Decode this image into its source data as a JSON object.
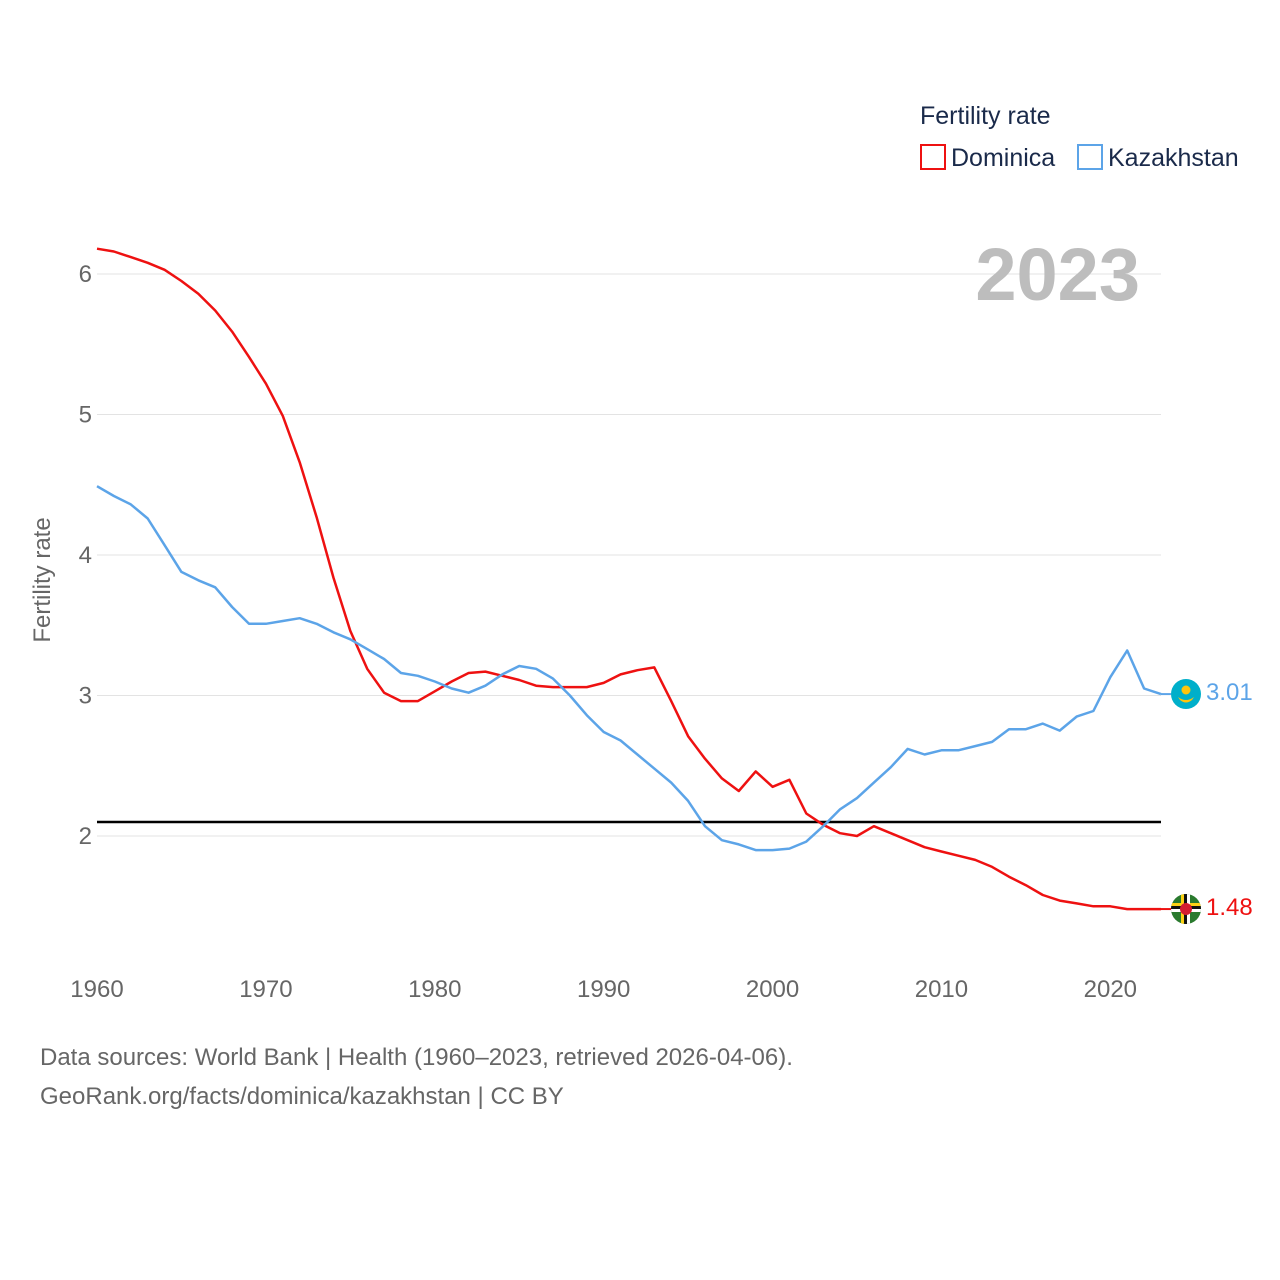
{
  "chart_data": {
    "type": "line",
    "title": "",
    "xlabel": "",
    "ylabel": "Fertility rate",
    "xlim": [
      1960,
      2023
    ],
    "ylim": [
      1.0,
      6.4
    ],
    "yticks": [
      2,
      3,
      4,
      5,
      6
    ],
    "xticks": [
      1960,
      1970,
      1980,
      1990,
      2000,
      2010,
      2020
    ],
    "year_label": "2023",
    "reference_line": {
      "y": 2.1,
      "color": "#000000"
    },
    "legend": {
      "title": "Fertility rate",
      "position": "top-right"
    },
    "x": [
      1960,
      1961,
      1962,
      1963,
      1964,
      1965,
      1966,
      1967,
      1968,
      1969,
      1970,
      1971,
      1972,
      1973,
      1974,
      1975,
      1976,
      1977,
      1978,
      1979,
      1980,
      1981,
      1982,
      1983,
      1984,
      1985,
      1986,
      1987,
      1988,
      1989,
      1990,
      1991,
      1992,
      1993,
      1994,
      1995,
      1996,
      1997,
      1998,
      1999,
      2000,
      2001,
      2002,
      2003,
      2004,
      2005,
      2006,
      2007,
      2008,
      2009,
      2010,
      2011,
      2012,
      2013,
      2014,
      2015,
      2016,
      2017,
      2018,
      2019,
      2020,
      2021,
      2022,
      2023
    ],
    "series": [
      {
        "name": "Dominica",
        "color": "#ee1111",
        "end_value_label": "1.48",
        "values": [
          6.18,
          6.16,
          6.12,
          6.08,
          6.03,
          5.95,
          5.86,
          5.74,
          5.59,
          5.41,
          5.22,
          4.99,
          4.66,
          4.27,
          3.84,
          3.46,
          3.19,
          3.02,
          2.96,
          2.96,
          3.03,
          3.1,
          3.16,
          3.17,
          3.14,
          3.11,
          3.07,
          3.06,
          3.06,
          3.06,
          3.09,
          3.15,
          3.18,
          3.2,
          2.96,
          2.71,
          2.55,
          2.41,
          2.32,
          2.46,
          2.35,
          2.4,
          2.16,
          2.08,
          2.02,
          2.0,
          2.07,
          2.02,
          1.97,
          1.92,
          1.89,
          1.86,
          1.83,
          1.78,
          1.71,
          1.65,
          1.58,
          1.54,
          1.52,
          1.5,
          1.5,
          1.48,
          1.48,
          1.48
        ]
      },
      {
        "name": "Kazakhstan",
        "color": "#5ca4e8",
        "end_value_label": "3.01",
        "values": [
          4.49,
          4.42,
          4.36,
          4.26,
          4.07,
          3.88,
          3.82,
          3.77,
          3.63,
          3.51,
          3.51,
          3.53,
          3.55,
          3.51,
          3.45,
          3.4,
          3.33,
          3.26,
          3.16,
          3.14,
          3.1,
          3.05,
          3.02,
          3.07,
          3.15,
          3.21,
          3.19,
          3.12,
          3.0,
          2.86,
          2.74,
          2.68,
          2.58,
          2.48,
          2.38,
          2.25,
          2.07,
          1.97,
          1.94,
          1.9,
          1.9,
          1.91,
          1.96,
          2.07,
          2.19,
          2.27,
          2.38,
          2.49,
          2.62,
          2.58,
          2.61,
          2.61,
          2.64,
          2.67,
          2.76,
          2.76,
          2.8,
          2.75,
          2.85,
          2.89,
          3.13,
          3.32,
          3.05,
          3.01
        ]
      }
    ]
  },
  "footer": {
    "line1": "Data sources: World Bank | Health (1960–2023, retrieved 2026-04-06).",
    "line2": "GeoRank.org/facts/dominica/kazakhstan | CC BY"
  },
  "flags": {
    "dominica": {
      "green": "#2a7a2e",
      "yellow": "#fcd116",
      "black": "#111111",
      "white": "#ffffff",
      "red": "#d41c30"
    },
    "kazakhstan": {
      "blue": "#00afca",
      "gold": "#fec50c"
    }
  }
}
